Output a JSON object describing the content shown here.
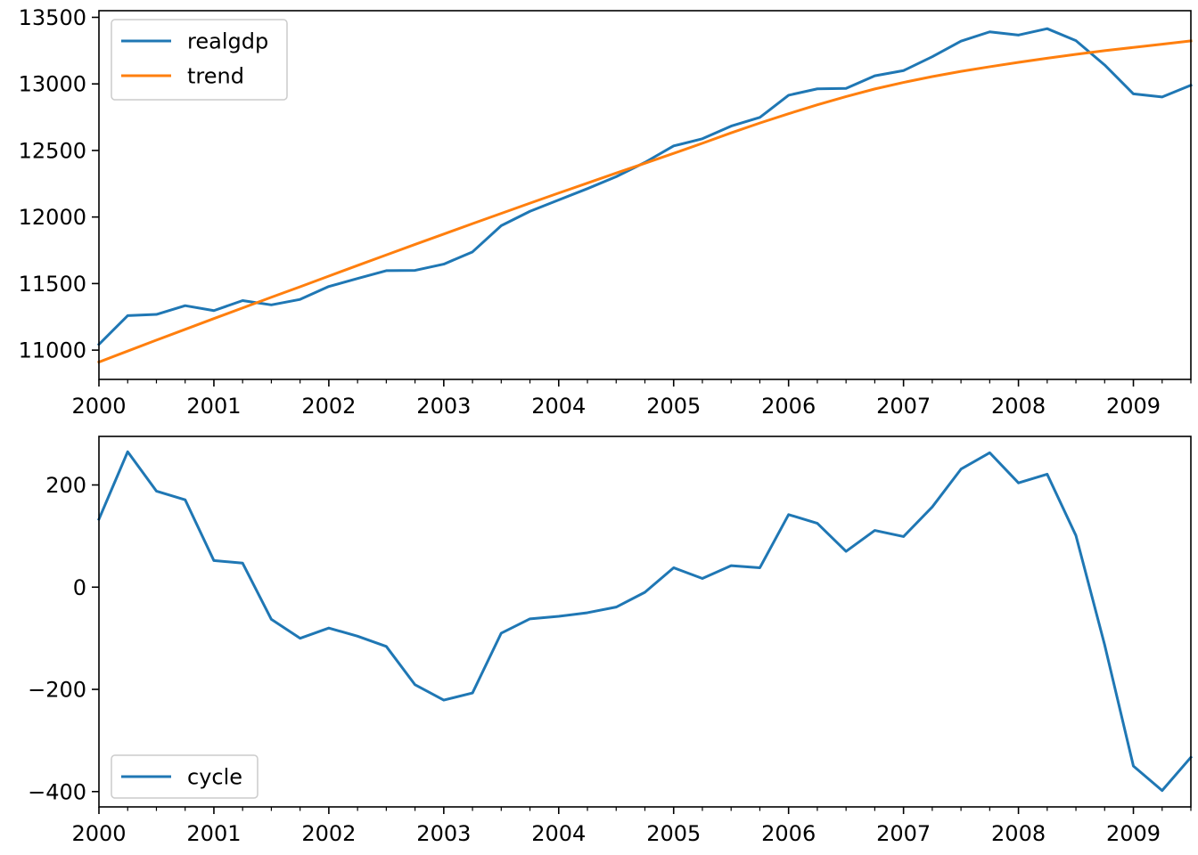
{
  "colors": {
    "realgdp": "#1f77b4",
    "trend": "#ff7f0e",
    "cycle": "#1f77b4"
  },
  "chart_data": [
    {
      "type": "line",
      "title": "",
      "xlabel": "",
      "ylabel": "",
      "x": [
        2000.0,
        2000.25,
        2000.5,
        2000.75,
        2001.0,
        2001.25,
        2001.5,
        2001.75,
        2002.0,
        2002.25,
        2002.5,
        2002.75,
        2003.0,
        2003.25,
        2003.5,
        2003.75,
        2004.0,
        2004.25,
        2004.5,
        2004.75,
        2005.0,
        2005.25,
        2005.5,
        2005.75,
        2006.0,
        2006.25,
        2006.5,
        2006.75,
        2007.0,
        2007.25,
        2007.5,
        2007.75,
        2008.0,
        2008.25,
        2008.5,
        2008.75,
        2009.0,
        2009.25,
        2009.5
      ],
      "xlim": [
        2000,
        2009.5
      ],
      "ylim": [
        10780,
        13550
      ],
      "x_ticks": [
        "2000",
        "2001",
        "2002",
        "2003",
        "2004",
        "2005",
        "2006",
        "2007",
        "2008",
        "2009"
      ],
      "y_ticks": [
        "11000",
        "11500",
        "12000",
        "12500",
        "13000",
        "13500"
      ],
      "legend": "top-left",
      "grid": false,
      "series": [
        {
          "name": "realgdp",
          "values": [
            11043,
            11259,
            11268,
            11334,
            11297,
            11372,
            11340,
            11381,
            11478,
            11538,
            11597,
            11599,
            11646,
            11738,
            11935,
            12043,
            12128,
            12213,
            12303,
            12410,
            12534,
            12588,
            12683,
            12748,
            12915,
            12963,
            12966,
            13061,
            13100,
            13204,
            13321,
            13391,
            13367,
            13415,
            13325,
            13142,
            12925,
            12902,
            12990
          ]
        },
        {
          "name": "trend",
          "values": [
            10910,
            10993,
            11075,
            11156,
            11237,
            11317,
            11397,
            11476,
            11556,
            11636,
            11715,
            11794,
            11872,
            11950,
            12027,
            12104,
            12180,
            12255,
            12330,
            12404,
            12478,
            12554,
            12632,
            12706,
            12776,
            12843,
            12905,
            12962,
            13011,
            13055,
            13094,
            13129,
            13162,
            13193,
            13222,
            13250,
            13274,
            13298,
            13323
          ]
        }
      ]
    },
    {
      "type": "line",
      "title": "",
      "xlabel": "",
      "ylabel": "",
      "x": [
        2000.0,
        2000.25,
        2000.5,
        2000.75,
        2001.0,
        2001.25,
        2001.5,
        2001.75,
        2002.0,
        2002.25,
        2002.5,
        2002.75,
        2003.0,
        2003.25,
        2003.5,
        2003.75,
        2004.0,
        2004.25,
        2004.5,
        2004.75,
        2005.0,
        2005.25,
        2005.5,
        2005.75,
        2006.0,
        2006.25,
        2006.5,
        2006.75,
        2007.0,
        2007.25,
        2007.5,
        2007.75,
        2008.0,
        2008.25,
        2008.5,
        2008.75,
        2009.0,
        2009.25,
        2009.5
      ],
      "xlim": [
        2000,
        2009.5
      ],
      "ylim": [
        -430,
        295
      ],
      "x_ticks": [
        "2000",
        "2001",
        "2002",
        "2003",
        "2004",
        "2005",
        "2006",
        "2007",
        "2008",
        "2009"
      ],
      "y_ticks": [
        "200",
        "0",
        "−200",
        "−400"
      ],
      "y_tick_values": [
        200,
        0,
        -200,
        -400
      ],
      "legend": "bottom-left",
      "grid": false,
      "series": [
        {
          "name": "cycle",
          "values": [
            133,
            265,
            188,
            171,
            52,
            47,
            -63,
            -100,
            -80,
            -96,
            -116,
            -191,
            -221,
            -207,
            -90,
            -62,
            -57,
            -50,
            -39,
            -10,
            38,
            17,
            42,
            38,
            142,
            125,
            70,
            111,
            99,
            157,
            231,
            263,
            204,
            221,
            101,
            -113,
            -350,
            -398,
            -333
          ]
        }
      ]
    }
  ]
}
